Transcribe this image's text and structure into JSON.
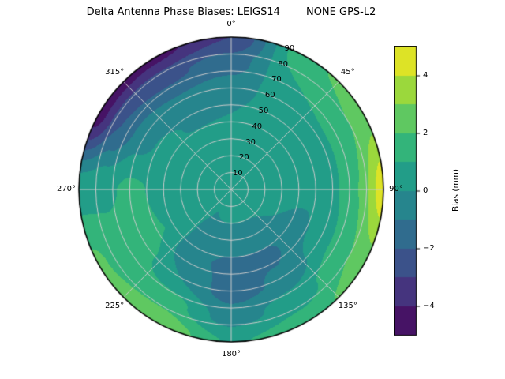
{
  "title": "Delta Antenna Phase Biases: LEIGS14        NONE GPS-L2",
  "chart_data": {
    "type": "heatmap",
    "projection": "polar",
    "description": "Filled polar contour of antenna phase bias vs azimuth (0-360 deg, clockwise from North) and zenith angle (0 at center to 90 at rim)",
    "angular_ticks": [
      "0°",
      "45°",
      "90°",
      "135°",
      "180°",
      "225°",
      "270°",
      "315°"
    ],
    "radial_ticks": [
      "10",
      "20",
      "30",
      "40",
      "50",
      "60",
      "70",
      "80",
      "90"
    ],
    "radial_tick_angle_deg": 22.5,
    "azimuths_deg": [
      0,
      30,
      60,
      90,
      120,
      150,
      180,
      210,
      240,
      270,
      300,
      330
    ],
    "zeniths_deg": [
      0,
      15,
      30,
      45,
      60,
      75,
      90
    ],
    "bias_mm": [
      [
        0.8,
        0.6,
        0.3,
        0.0,
        -0.5,
        -1.5,
        -3.0
      ],
      [
        0.8,
        0.6,
        0.5,
        0.5,
        0.5,
        1.0,
        1.8
      ],
      [
        0.8,
        0.5,
        0.4,
        0.4,
        0.8,
        1.8,
        2.6
      ],
      [
        0.8,
        0.4,
        0.3,
        0.3,
        0.8,
        2.0,
        4.6
      ],
      [
        0.8,
        0.3,
        0.0,
        -0.3,
        0.5,
        1.8,
        2.6
      ],
      [
        0.8,
        0.2,
        -0.5,
        -1.2,
        -0.8,
        0.5,
        1.6
      ],
      [
        0.8,
        0.2,
        -0.5,
        -1.2,
        -1.5,
        -0.5,
        0.9
      ],
      [
        0.8,
        0.0,
        -0.3,
        -0.8,
        0.0,
        1.5,
        3.0
      ],
      [
        0.8,
        0.4,
        0.5,
        1.0,
        1.5,
        1.5,
        2.2
      ],
      [
        0.8,
        0.5,
        0.6,
        0.9,
        1.2,
        0.8,
        0.6
      ],
      [
        0.8,
        0.6,
        0.5,
        0.3,
        -0.4,
        -2.0,
        -4.5
      ],
      [
        0.8,
        0.7,
        0.4,
        -0.1,
        -0.8,
        -2.2,
        -4.3
      ]
    ],
    "vmin": -5,
    "vmax": 5,
    "level_step": 1,
    "colorbar": {
      "label": "Bias (mm)",
      "ticks": [
        {
          "value": -4,
          "label": "−4"
        },
        {
          "value": -2,
          "label": "−2"
        },
        {
          "value": 0,
          "label": "0"
        },
        {
          "value": 2,
          "label": "2"
        },
        {
          "value": 4,
          "label": "4"
        }
      ]
    },
    "colormap": {
      "name": "viridis",
      "stops": [
        [
          0.0,
          "#440154"
        ],
        [
          0.1,
          "#482475"
        ],
        [
          0.2,
          "#414487"
        ],
        [
          0.3,
          "#355f8d"
        ],
        [
          0.4,
          "#2a788e"
        ],
        [
          0.5,
          "#21918c"
        ],
        [
          0.6,
          "#22a884"
        ],
        [
          0.7,
          "#44bf70"
        ],
        [
          0.8,
          "#7ad151"
        ],
        [
          0.9,
          "#bddf26"
        ],
        [
          1.0,
          "#fde725"
        ]
      ]
    },
    "grid": {
      "color": "#cccccc",
      "angular_step_deg": 45,
      "radial_step": 10
    }
  }
}
